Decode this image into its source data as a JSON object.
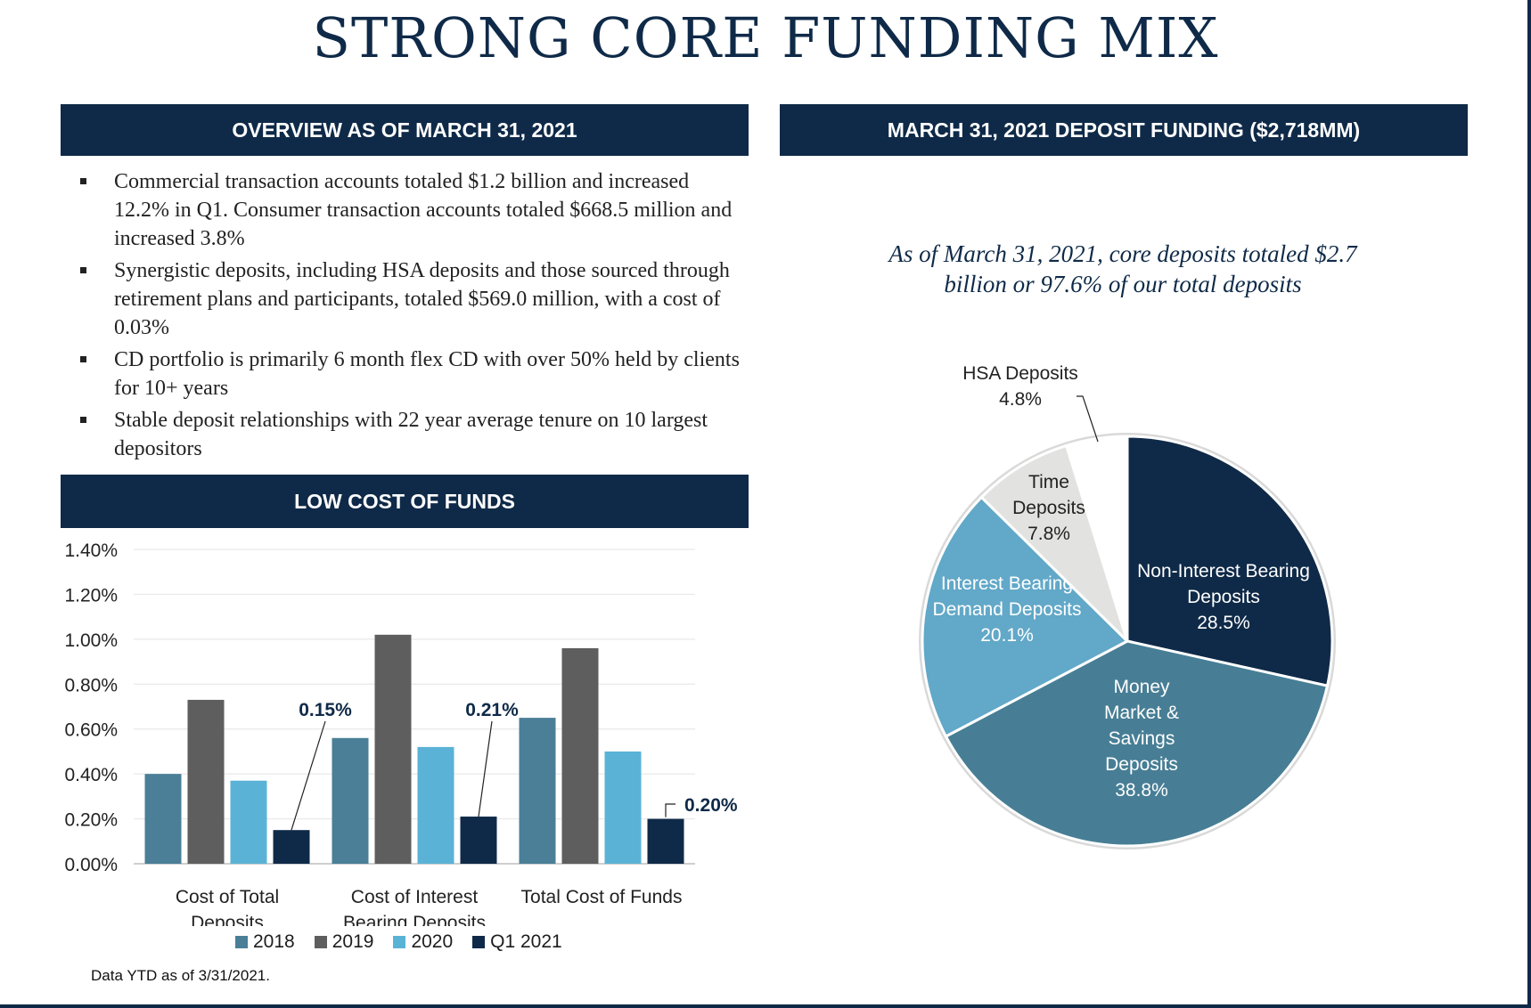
{
  "title": "STRONG CORE FUNDING MIX",
  "overview": {
    "header": "OVERVIEW AS OF MARCH 31, 2021",
    "bullets": [
      "Commercial transaction accounts totaled $1.2 billion and increased 12.2% in Q1. Consumer transaction accounts totaled $668.5 million and increased 3.8%",
      "Synergistic deposits, including HSA deposits and those sourced through retirement plans and participants, totaled $569.0 million, with a cost of 0.03%",
      "CD portfolio is primarily 6 month flex CD with over 50% held by clients for 10+ years",
      "Stable deposit relationships with 22 year average tenure on 10 largest depositors"
    ]
  },
  "deposit": {
    "header": "MARCH 31, 2021 DEPOSIT FUNDING ($2,718MM)",
    "subtitle_line1": "As of March 31, 2021, core deposits totaled $2.7",
    "subtitle_line2": "billion or 97.6% of our total deposits"
  },
  "cost": {
    "header": "LOW COST OF FUNDS",
    "footnote": "Data YTD as of 3/31/2021."
  },
  "colors": {
    "navy": "#0f2a48",
    "s2018": "#4a7f97",
    "s2019": "#5e5e5e",
    "s2020": "#5ab3d6",
    "q12021": "#0f2a48",
    "pie_nib": "#0f2a48",
    "pie_mm": "#477e95",
    "pie_ibd": "#62a8c8",
    "pie_time": "#e2e2e0",
    "pie_hsa": "#ffffff"
  },
  "chart_data": [
    {
      "type": "bar",
      "title": "LOW COST OF FUNDS",
      "categories": [
        [
          "Cost of Total",
          "Deposits"
        ],
        [
          "Cost of Interest",
          "Bearing Deposits"
        ],
        [
          "Total Cost of Funds"
        ]
      ],
      "series": [
        {
          "name": "2018",
          "values": [
            0.4,
            0.56,
            0.65
          ]
        },
        {
          "name": "2019",
          "values": [
            0.73,
            1.02,
            0.96
          ]
        },
        {
          "name": "2020",
          "values": [
            0.37,
            0.52,
            0.5
          ]
        },
        {
          "name": "Q1 2021",
          "values": [
            0.15,
            0.21,
            0.2
          ]
        }
      ],
      "ylim": [
        0,
        1.4
      ],
      "yticks": [
        "0.00%",
        "0.20%",
        "0.40%",
        "0.60%",
        "0.80%",
        "1.00%",
        "1.20%",
        "1.40%"
      ],
      "data_labels": [
        "0.15%",
        "0.21%",
        "0.20%"
      ],
      "grid": true,
      "legend": "bottom"
    },
    {
      "type": "pie",
      "title": "MARCH 31, 2021 DEPOSIT FUNDING ($2,718MM)",
      "slices": [
        {
          "label": [
            "Non-Interest Bearing",
            "Deposits"
          ],
          "pct_label": "28.5%",
          "value": 28.5
        },
        {
          "label": [
            "Money",
            "Market &",
            "Savings",
            "Deposits"
          ],
          "pct_label": "38.8%",
          "value": 38.8
        },
        {
          "label": [
            "Interest Bearing",
            "Demand Deposits"
          ],
          "pct_label": "20.1%",
          "value": 20.1
        },
        {
          "label": [
            "Time",
            "Deposits"
          ],
          "pct_label": "7.8%",
          "value": 7.8
        },
        {
          "label": [
            "HSA Deposits"
          ],
          "pct_label": "4.8%",
          "value": 4.8
        }
      ]
    }
  ]
}
